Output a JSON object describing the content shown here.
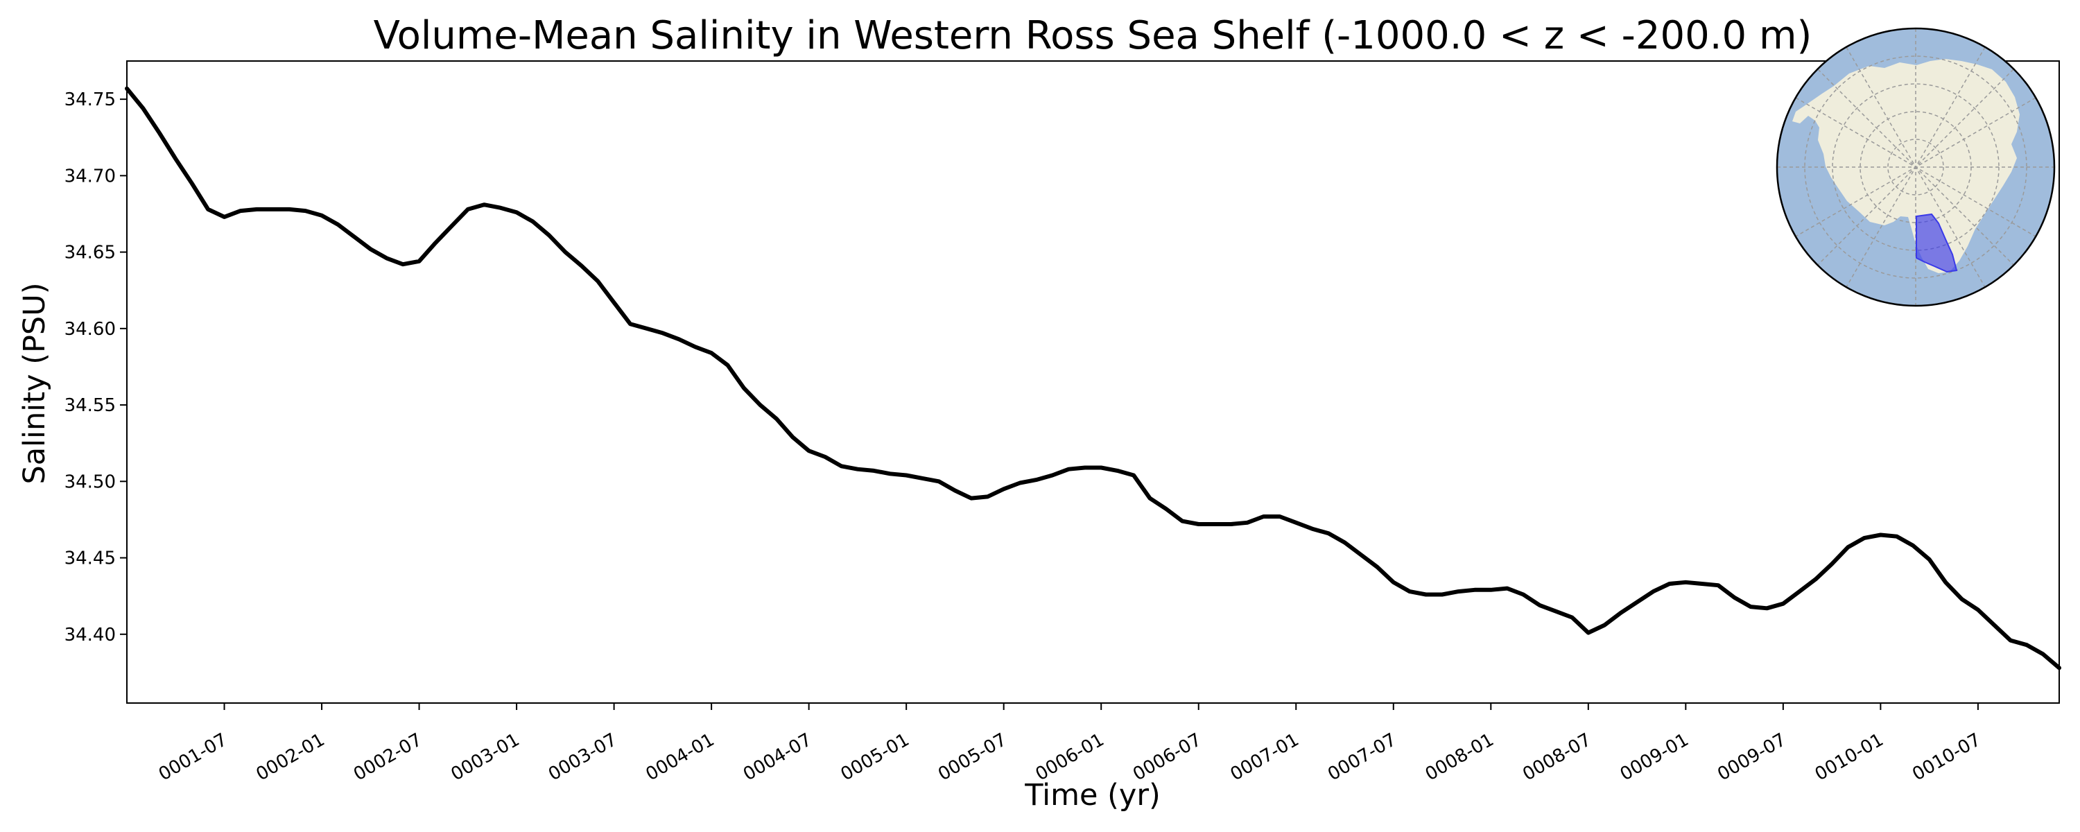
{
  "chart_data": {
    "type": "line",
    "title": "Volume-Mean Salinity in Western Ross Sea Shelf (-1000.0 < z < -200.0 m)",
    "xlabel": "Time (yr)",
    "ylabel": "Salinity (PSU)",
    "x_ticks": [
      "0001-07",
      "0002-01",
      "0002-07",
      "0003-01",
      "0003-07",
      "0004-01",
      "0004-07",
      "0005-01",
      "0005-07",
      "0006-01",
      "0006-07",
      "0007-01",
      "0007-07",
      "0008-01",
      "0008-07",
      "0009-01",
      "0009-07",
      "0010-01",
      "0010-07"
    ],
    "y_ticks": [
      "34.40",
      "34.45",
      "34.50",
      "34.55",
      "34.60",
      "34.65",
      "34.70",
      "34.75"
    ],
    "xlim": [
      "0001-01",
      "0010-12"
    ],
    "ylim": [
      34.355,
      34.775
    ],
    "grid": false,
    "legend": "none",
    "series": [
      {
        "color": "#000000",
        "x": [
          "0001-01",
          "0001-02",
          "0001-03",
          "0001-04",
          "0001-05",
          "0001-06",
          "0001-07",
          "0001-08",
          "0001-09",
          "0001-10",
          "0001-11",
          "0001-12",
          "0002-01",
          "0002-02",
          "0002-03",
          "0002-04",
          "0002-05",
          "0002-06",
          "0002-07",
          "0002-08",
          "0002-09",
          "0002-10",
          "0002-11",
          "0002-12",
          "0003-01",
          "0003-02",
          "0003-03",
          "0003-04",
          "0003-05",
          "0003-06",
          "0003-07",
          "0003-08",
          "0003-09",
          "0003-10",
          "0003-11",
          "0003-12",
          "0004-01",
          "0004-02",
          "0004-03",
          "0004-04",
          "0004-05",
          "0004-06",
          "0004-07",
          "0004-08",
          "0004-09",
          "0004-10",
          "0004-11",
          "0004-12",
          "0005-01",
          "0005-02",
          "0005-03",
          "0005-04",
          "0005-05",
          "0005-06",
          "0005-07",
          "0005-08",
          "0005-09",
          "0005-10",
          "0005-11",
          "0005-12",
          "0006-01",
          "0006-02",
          "0006-03",
          "0006-04",
          "0006-05",
          "0006-06",
          "0006-07",
          "0006-08",
          "0006-09",
          "0006-10",
          "0006-11",
          "0006-12",
          "0007-01",
          "0007-02",
          "0007-03",
          "0007-04",
          "0007-05",
          "0007-06",
          "0007-07",
          "0007-08",
          "0007-09",
          "0007-10",
          "0007-11",
          "0007-12",
          "0008-01",
          "0008-02",
          "0008-03",
          "0008-04",
          "0008-05",
          "0008-06",
          "0008-07",
          "0008-08",
          "0008-09",
          "0008-10",
          "0008-11",
          "0008-12",
          "0009-01",
          "0009-02",
          "0009-03",
          "0009-04",
          "0009-05",
          "0009-06",
          "0009-07",
          "0009-08",
          "0009-09",
          "0009-10",
          "0009-11",
          "0009-12",
          "0010-01",
          "0010-02",
          "0010-03",
          "0010-04",
          "0010-05",
          "0010-06",
          "0010-07",
          "0010-08",
          "0010-09",
          "0010-10",
          "0010-11",
          "0010-12"
        ],
        "y": [
          34.757,
          34.744,
          34.728,
          34.711,
          34.695,
          34.678,
          34.673,
          34.677,
          34.678,
          34.678,
          34.678,
          34.677,
          34.674,
          34.668,
          34.66,
          34.652,
          34.646,
          34.642,
          34.644,
          34.656,
          34.667,
          34.678,
          34.681,
          34.679,
          34.676,
          34.67,
          34.661,
          34.65,
          34.641,
          34.631,
          34.617,
          34.603,
          34.6,
          34.597,
          34.593,
          34.588,
          34.584,
          34.576,
          34.561,
          34.55,
          34.541,
          34.529,
          34.52,
          34.516,
          34.51,
          34.508,
          34.507,
          34.505,
          34.504,
          34.502,
          34.5,
          34.494,
          34.489,
          34.49,
          34.495,
          34.499,
          34.501,
          34.504,
          34.508,
          34.509,
          34.509,
          34.507,
          34.504,
          34.489,
          34.482,
          34.474,
          34.472,
          34.472,
          34.472,
          34.473,
          34.477,
          34.477,
          34.473,
          34.469,
          34.466,
          34.46,
          34.452,
          34.444,
          34.434,
          34.428,
          34.426,
          34.426,
          34.428,
          34.429,
          34.429,
          34.43,
          34.426,
          34.419,
          34.415,
          34.411,
          34.401,
          34.406,
          34.414,
          34.421,
          34.428,
          34.433,
          34.434,
          34.433,
          34.432,
          34.424,
          34.418,
          34.417,
          34.42,
          34.428,
          34.436,
          34.446,
          34.457,
          34.463,
          34.465,
          34.464,
          34.458,
          34.449,
          34.434,
          34.423,
          34.416,
          34.406,
          34.396,
          34.393,
          34.387,
          34.378
        ]
      }
    ]
  },
  "inset_map": {
    "ocean_color": "#a0bcdc",
    "land_color": "#efeddc",
    "region_color": "#3a3ae8"
  }
}
